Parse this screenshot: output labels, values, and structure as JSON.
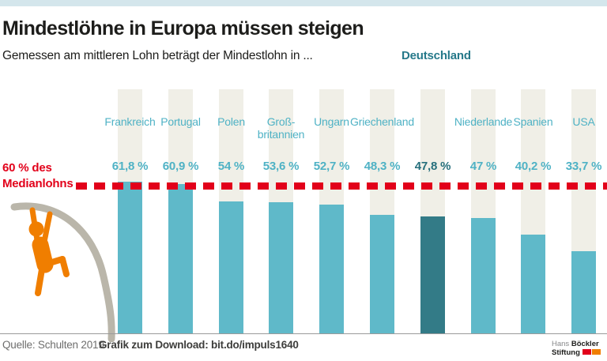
{
  "header": {
    "title": "Mindestlöhne in Europa müssen steigen",
    "subtitle": "Gemessen am mittleren Lohn beträgt der Mindestlohn in ...",
    "subtitle_highlight": "Deutschland"
  },
  "chart_data": {
    "type": "bar",
    "categories": [
      "Frankreich",
      "Portugal",
      "Polen",
      "Groß-\nbritannien",
      "Ungarn",
      "Griechenland",
      "Deutschland",
      "Niederlande",
      "Spanien",
      "USA"
    ],
    "values": [
      61.8,
      60.9,
      54,
      53.6,
      52.7,
      48.3,
      47.8,
      47,
      40.2,
      33.7
    ],
    "value_labels": [
      "61,8 %",
      "60,9 %",
      "54 %",
      "53,6 %",
      "52,7 %",
      "48,3 %",
      "47,8 %",
      "47 %",
      "40,2 %",
      "33,7 %"
    ],
    "highlight_index": 6,
    "highlight_label_in_subtitle": true,
    "ylim": [
      0,
      100
    ],
    "grid": false,
    "legend": false,
    "reference_line": {
      "value": 60,
      "label_line1": "60 % des",
      "label_line2": "Medianlohns",
      "color": "#e2001a"
    },
    "colors": {
      "bar": "#5fb9c9",
      "bar_highlight": "#337b87",
      "column_bg": "#f0efe7",
      "label_teal": "#4fb2c5",
      "label_teal_dark": "#26798a"
    }
  },
  "icons": {
    "pole_vaulter": "pole-vaulter-climbing-icon",
    "pole_color": "#bab6aa",
    "figure_color": "#f07e00"
  },
  "footer": {
    "source": "Quelle: Schulten 2019",
    "download": "Grafik zum Download: bit.do/impuls1640",
    "logo": {
      "line1_light": "Hans",
      "line1_bold": "Böckler",
      "line2_bold": "Stiftung"
    }
  }
}
